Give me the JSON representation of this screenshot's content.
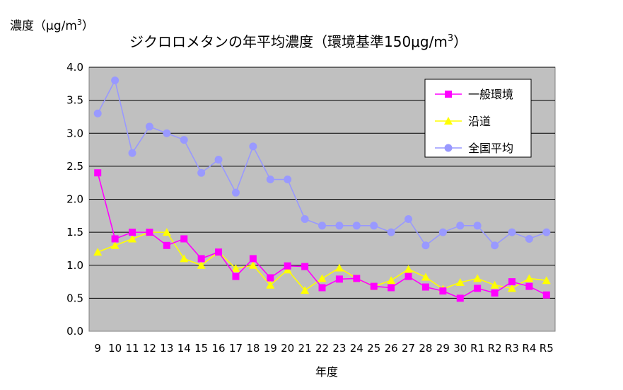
{
  "chart_data": {
    "type": "line",
    "title": "ジクロロメタンの年平均濃度（環境基準150μg/m",
    "title_sup": "3",
    "title_end": "）",
    "ylabel": "濃度（μg/m",
    "ylabel_sup": "3",
    "ylabel_end": "）",
    "xlabel": "年度",
    "ylim": [
      0,
      4.0
    ],
    "yticks": [
      "0.0",
      "0.5",
      "1.0",
      "1.5",
      "2.0",
      "2.5",
      "3.0",
      "3.5",
      "4.0"
    ],
    "grid": true,
    "legend_position": "top-right",
    "categories": [
      "9",
      "10",
      "11",
      "12",
      "13",
      "14",
      "15",
      "16",
      "17",
      "18",
      "19",
      "20",
      "21",
      "22",
      "23",
      "24",
      "25",
      "26",
      "27",
      "28",
      "29",
      "30",
      "R1",
      "R2",
      "R3",
      "R4",
      "R5"
    ],
    "series": [
      {
        "name": "一般環境",
        "color": "#ff00ff",
        "marker": "square",
        "values": [
          2.4,
          1.4,
          1.5,
          1.5,
          1.3,
          1.4,
          1.1,
          1.2,
          0.83,
          1.1,
          0.81,
          0.99,
          0.98,
          0.66,
          0.79,
          0.8,
          0.68,
          0.66,
          0.83,
          0.67,
          0.61,
          0.5,
          0.65,
          0.58,
          0.75,
          0.68,
          0.55
        ]
      },
      {
        "name": "沿道",
        "color": "#ffff00",
        "marker": "triangle",
        "values": [
          1.2,
          1.3,
          1.4,
          1.5,
          1.5,
          1.1,
          1.0,
          1.2,
          0.95,
          1.0,
          0.7,
          0.93,
          0.62,
          0.8,
          0.96,
          0.8,
          0.68,
          0.77,
          0.94,
          0.82,
          0.64,
          0.74,
          0.8,
          0.7,
          0.65,
          0.8,
          0.77
        ]
      },
      {
        "name": "全国平均",
        "color": "#9999ff",
        "marker": "circle",
        "values": [
          3.3,
          3.8,
          2.7,
          3.1,
          3.0,
          2.9,
          2.4,
          2.6,
          2.1,
          2.8,
          2.3,
          2.3,
          1.7,
          1.6,
          1.6,
          1.6,
          1.6,
          1.5,
          1.7,
          1.3,
          1.5,
          1.6,
          1.6,
          1.3,
          1.5,
          1.4,
          1.5
        ]
      }
    ],
    "colors": {
      "plot_background": "#c0c0c0",
      "gridline": "#000000",
      "legend_background": "#ffffff"
    }
  }
}
